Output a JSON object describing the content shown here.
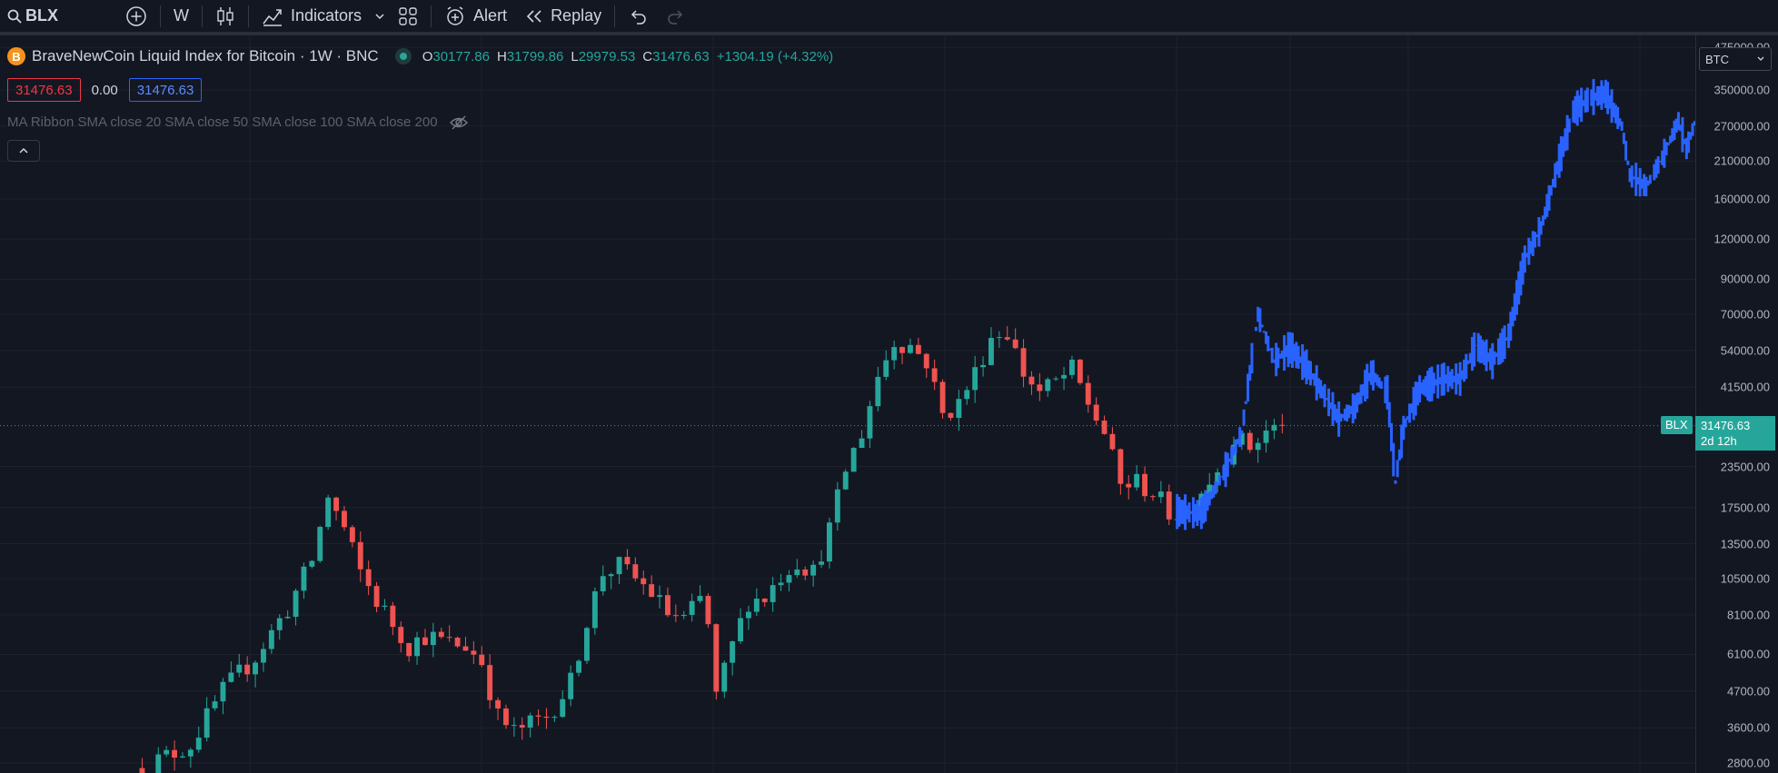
{
  "toolbar": {
    "symbol": "BLX",
    "interval": "W",
    "indicators_label": "Indicators",
    "alert_label": "Alert",
    "replay_label": "Replay"
  },
  "legend": {
    "title": "BraveNewCoin Liquid Index for Bitcoin · 1W · BNC",
    "logo_letter": "B",
    "open_key": "O",
    "open": "30177.86",
    "high_key": "H",
    "high": "31799.86",
    "low_key": "L",
    "low": "29979.53",
    "close_key": "C",
    "close": "31476.63",
    "change": "+1304.19 (+4.32%)",
    "sell_value": "31476.63",
    "spread": "0.00",
    "buy_value": "31476.63",
    "ma_ribbon": "MA Ribbon SMA close 20 SMA close 50 SMA close 100 SMA close 200"
  },
  "price_axis": {
    "currency": "BTC",
    "ticks": [
      {
        "label": "475000.00",
        "value": 475000
      },
      {
        "label": "350000.00",
        "value": 350000
      },
      {
        "label": "270000.00",
        "value": 270000
      },
      {
        "label": "210000.00",
        "value": 210000
      },
      {
        "label": "160000.00",
        "value": 160000
      },
      {
        "label": "120000.00",
        "value": 120000
      },
      {
        "label": "90000.00",
        "value": 90000
      },
      {
        "label": "70000.00",
        "value": 70000
      },
      {
        "label": "54000.00",
        "value": 54000
      },
      {
        "label": "41500.00",
        "value": 41500
      },
      {
        "label": "23500.00",
        "value": 23500
      },
      {
        "label": "17500.00",
        "value": 17500
      },
      {
        "label": "13500.00",
        "value": 13500
      },
      {
        "label": "10500.00",
        "value": 10500
      },
      {
        "label": "8100.00",
        "value": 8100
      },
      {
        "label": "6100.00",
        "value": 6100
      },
      {
        "label": "4700.00",
        "value": 4700
      },
      {
        "label": "3600.00",
        "value": 3600
      },
      {
        "label": "2800.00",
        "value": 2800
      }
    ],
    "last_symbol": "BLX",
    "last_price": "31476.63",
    "countdown": "2d 12h"
  },
  "colors": {
    "up": "#26a69a",
    "down": "#ef5350",
    "projection": "#2962ff",
    "background": "#131722",
    "grid": "#1e222d"
  },
  "chart_data": {
    "type": "candlestick",
    "scale": "log",
    "price_series_anchors": [
      [
        0,
        2700
      ],
      [
        6,
        3200
      ],
      [
        10,
        4700
      ],
      [
        14,
        6000
      ],
      [
        18,
        8500
      ],
      [
        21,
        12000
      ],
      [
        23,
        19000
      ],
      [
        25,
        15000
      ],
      [
        27,
        11000
      ],
      [
        29,
        9000
      ],
      [
        31,
        7600
      ],
      [
        33,
        6500
      ],
      [
        35,
        7000
      ],
      [
        38,
        6600
      ],
      [
        40,
        6500
      ],
      [
        42,
        5800
      ],
      [
        44,
        3900
      ],
      [
        46,
        3500
      ],
      [
        48,
        3700
      ],
      [
        50,
        3900
      ],
      [
        53,
        5000
      ],
      [
        55,
        7800
      ],
      [
        57,
        11000
      ],
      [
        59,
        11500
      ],
      [
        61,
        10500
      ],
      [
        63,
        9500
      ],
      [
        65,
        8200
      ],
      [
        67,
        7800
      ],
      [
        69,
        9000
      ],
      [
        70,
        7500
      ],
      [
        71,
        4500
      ],
      [
        73,
        6500
      ],
      [
        75,
        9000
      ],
      [
        77,
        9200
      ],
      [
        79,
        10800
      ],
      [
        81,
        12000
      ],
      [
        83,
        11000
      ],
      [
        85,
        15000
      ],
      [
        87,
        23000
      ],
      [
        89,
        30000
      ],
      [
        91,
        45000
      ],
      [
        93,
        58000
      ],
      [
        95,
        56000
      ],
      [
        97,
        50000
      ],
      [
        99,
        34000
      ],
      [
        101,
        37000
      ],
      [
        103,
        46000
      ],
      [
        105,
        60000
      ],
      [
        107,
        62000
      ],
      [
        109,
        46000
      ],
      [
        111,
        40000
      ],
      [
        113,
        43000
      ],
      [
        115,
        47000
      ],
      [
        117,
        37000
      ],
      [
        119,
        30000
      ],
      [
        121,
        20500
      ],
      [
        123,
        21000
      ],
      [
        125,
        19500
      ],
      [
        127,
        17000
      ],
      [
        129,
        16800
      ],
      [
        131,
        20000
      ],
      [
        133,
        23000
      ],
      [
        135,
        29000
      ],
      [
        137,
        27000
      ],
      [
        139,
        30000
      ],
      [
        141,
        31476.63
      ]
    ],
    "projection_anchors": [
      [
        128,
        17000
      ],
      [
        131,
        16800
      ],
      [
        134,
        23000
      ],
      [
        136,
        30000
      ],
      [
        137,
        46000
      ],
      [
        138,
        70000
      ],
      [
        140,
        50000
      ],
      [
        142,
        55000
      ],
      [
        144,
        48000
      ],
      [
        146,
        40000
      ],
      [
        148,
        33000
      ],
      [
        150,
        36000
      ],
      [
        152,
        46000
      ],
      [
        154,
        40000
      ],
      [
        155,
        21000
      ],
      [
        156,
        31000
      ],
      [
        158,
        41000
      ],
      [
        161,
        44000
      ],
      [
        163,
        44000
      ],
      [
        165,
        56000
      ],
      [
        167,
        50000
      ],
      [
        169,
        60000
      ],
      [
        171,
        104000
      ],
      [
        173,
        130000
      ],
      [
        175,
        200000
      ],
      [
        177,
        300000
      ],
      [
        179,
        330000
      ],
      [
        181,
        340000
      ],
      [
        183,
        270000
      ],
      [
        184,
        190000
      ],
      [
        186,
        175000
      ],
      [
        188,
        215000
      ],
      [
        190,
        280000
      ],
      [
        191,
        230000
      ],
      [
        193,
        330000
      ],
      [
        195,
        350000
      ]
    ]
  }
}
